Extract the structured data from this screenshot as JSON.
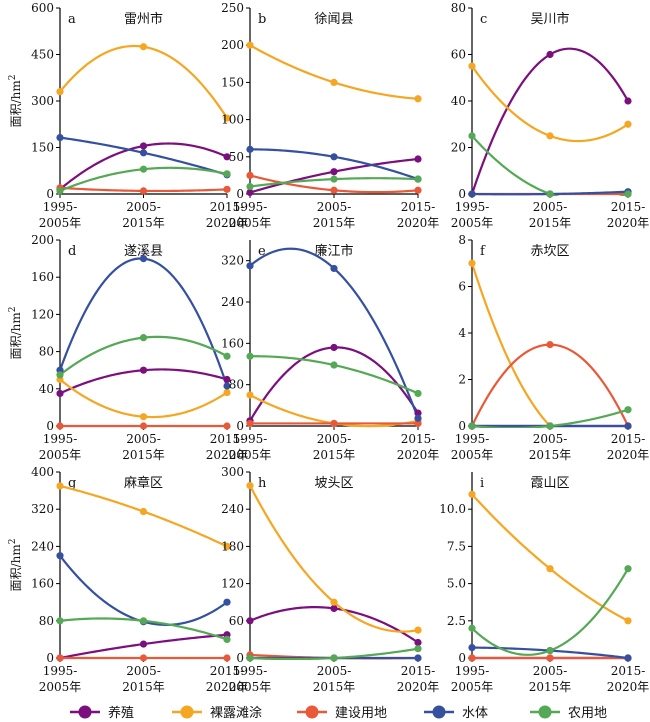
{
  "ylabel_main": "面积/hm",
  "ylabel_sup": "2",
  "legend": [
    {
      "name": "养殖",
      "color": "#7b0f7e"
    },
    {
      "name": "裸露滩涂",
      "color": "#f5a623"
    },
    {
      "name": "建设用地",
      "color": "#e8593a"
    },
    {
      "name": "水体",
      "color": "#3650a0"
    },
    {
      "name": "农用地",
      "color": "#55a855"
    }
  ],
  "chart_data": [
    {
      "type": "line",
      "letter": "a",
      "title": "雷州市",
      "categories": [
        "1995-2005年",
        "2005-2015年",
        "2015-2020年"
      ],
      "ylim": [
        0,
        600
      ],
      "yticks": [
        "0",
        "150",
        "300",
        "450",
        "600"
      ],
      "ytick_values": [
        0,
        150,
        300,
        450,
        600
      ],
      "series": [
        {
          "name": "养殖",
          "values": [
            15,
            155,
            120
          ]
        },
        {
          "name": "裸露滩涂",
          "values": [
            330,
            475,
            245
          ]
        },
        {
          "name": "建设用地",
          "values": [
            20,
            10,
            15
          ]
        },
        {
          "name": "水体",
          "values": [
            182,
            133,
            62
          ]
        },
        {
          "name": "农用地",
          "values": [
            10,
            80,
            65
          ]
        }
      ]
    },
    {
      "type": "line",
      "letter": "b",
      "title": "徐闻县",
      "categories": [
        "1995-2005年",
        "2005-2015年",
        "2015-2020年"
      ],
      "ylim": [
        0,
        250
      ],
      "yticks": [
        "0",
        "50",
        "100",
        "150",
        "200",
        "250"
      ],
      "ytick_values": [
        0,
        50,
        100,
        150,
        200,
        250
      ],
      "series": [
        {
          "name": "养殖",
          "values": [
            2,
            30,
            47
          ]
        },
        {
          "name": "裸露滩涂",
          "values": [
            200,
            150,
            128
          ]
        },
        {
          "name": "建设用地",
          "values": [
            25,
            5,
            5
          ]
        },
        {
          "name": "水体",
          "values": [
            60,
            50,
            20
          ]
        },
        {
          "name": "农用地",
          "values": [
            10,
            20,
            20
          ]
        }
      ]
    },
    {
      "type": "line",
      "letter": "c",
      "title": "吴川市",
      "categories": [
        "1995-2005年",
        "2005-2015年",
        "2015-2020年"
      ],
      "ylim": [
        0,
        80
      ],
      "yticks": [
        "0",
        "20",
        "40",
        "60",
        "80"
      ],
      "ytick_values": [
        0,
        20,
        40,
        60,
        80
      ],
      "series": [
        {
          "name": "养殖",
          "values": [
            0,
            60,
            40
          ]
        },
        {
          "name": "裸露滩涂",
          "values": [
            55,
            25,
            30
          ]
        },
        {
          "name": "建设用地",
          "values": [
            0,
            0,
            0
          ]
        },
        {
          "name": "水体",
          "values": [
            0,
            0,
            1
          ]
        },
        {
          "name": "农用地",
          "values": [
            25,
            0,
            0
          ]
        }
      ]
    },
    {
      "type": "line",
      "letter": "d",
      "title": "遂溪县",
      "categories": [
        "1995-2005年",
        "2005-2015年",
        "2015-2020年"
      ],
      "ylim": [
        0,
        200
      ],
      "yticks": [
        "0",
        "40",
        "80",
        "120",
        "160",
        "200"
      ],
      "ytick_values": [
        0,
        40,
        80,
        120,
        160,
        200
      ],
      "series": [
        {
          "name": "养殖",
          "values": [
            35,
            60,
            50
          ]
        },
        {
          "name": "裸露滩涂",
          "values": [
            50,
            10,
            36
          ]
        },
        {
          "name": "建设用地",
          "values": [
            0,
            0,
            0
          ]
        },
        {
          "name": "水体",
          "values": [
            60,
            180,
            43
          ]
        },
        {
          "name": "农用地",
          "values": [
            55,
            95,
            75
          ]
        }
      ]
    },
    {
      "type": "line",
      "letter": "e",
      "title": "廉江市",
      "categories": [
        "1995-2005年",
        "2005-2015年",
        "2015-2020年"
      ],
      "ylim": [
        0,
        360
      ],
      "yticks": [
        "0",
        "80",
        "160",
        "240",
        "320"
      ],
      "ytick_values": [
        0,
        80,
        160,
        240,
        320
      ],
      "series": [
        {
          "name": "养殖",
          "values": [
            10,
            152,
            25
          ]
        },
        {
          "name": "裸露滩涂",
          "values": [
            60,
            5,
            10
          ]
        },
        {
          "name": "建设用地",
          "values": [
            5,
            5,
            5
          ]
        },
        {
          "name": "水体",
          "values": [
            310,
            305,
            15
          ]
        },
        {
          "name": "农用地",
          "values": [
            135,
            118,
            63
          ]
        }
      ]
    },
    {
      "type": "line",
      "letter": "f",
      "title": "赤坎区",
      "categories": [
        "1995-2005年",
        "2005-2015年",
        "2015-2020年"
      ],
      "ylim": [
        0,
        8
      ],
      "yticks": [
        "0",
        "2",
        "4",
        "6",
        "8"
      ],
      "ytick_values": [
        0,
        2,
        4,
        6,
        8
      ],
      "series": [
        {
          "name": "养殖",
          "values": [
            0,
            0,
            0
          ]
        },
        {
          "name": "裸露滩涂",
          "values": [
            7,
            0,
            0
          ]
        },
        {
          "name": "建设用地",
          "values": [
            0,
            3.5,
            0
          ]
        },
        {
          "name": "水体",
          "values": [
            0,
            0,
            0
          ]
        },
        {
          "name": "农用地",
          "values": [
            0,
            0,
            0.7
          ]
        }
      ]
    },
    {
      "type": "line",
      "letter": "g",
      "title": "麻章区",
      "categories": [
        "1995-2005年",
        "2005-2015年",
        "2015-2020年"
      ],
      "ylim": [
        0,
        400
      ],
      "yticks": [
        "0",
        "80",
        "160",
        "240",
        "320",
        "400"
      ],
      "ytick_values": [
        0,
        80,
        160,
        240,
        320,
        400
      ],
      "series": [
        {
          "name": "养殖",
          "values": [
            0,
            30,
            50
          ]
        },
        {
          "name": "裸露滩涂",
          "values": [
            370,
            315,
            240
          ]
        },
        {
          "name": "建设用地",
          "values": [
            0,
            0,
            0
          ]
        },
        {
          "name": "水体",
          "values": [
            220,
            78,
            120
          ]
        },
        {
          "name": "农用地",
          "values": [
            80,
            80,
            40
          ]
        }
      ]
    },
    {
      "type": "line",
      "letter": "h",
      "title": "坡头区",
      "categories": [
        "1995-2005年",
        "2005-2015年",
        "2015-2020年"
      ],
      "ylim": [
        0,
        300
      ],
      "yticks": [
        "0",
        "60",
        "120",
        "180",
        "240",
        "300"
      ],
      "ytick_values": [
        0,
        60,
        120,
        180,
        240,
        300
      ],
      "series": [
        {
          "name": "养殖",
          "values": [
            60,
            80,
            25
          ]
        },
        {
          "name": "裸露滩涂",
          "values": [
            278,
            90,
            45
          ]
        },
        {
          "name": "建设用地",
          "values": [
            5,
            0,
            0
          ]
        },
        {
          "name": "水体",
          "values": [
            0,
            0,
            0
          ]
        },
        {
          "name": "农用地",
          "values": [
            0,
            0,
            15
          ]
        }
      ]
    },
    {
      "type": "line",
      "letter": "i",
      "title": "霞山区",
      "categories": [
        "1995-2005年",
        "2005-2015年",
        "2015-2020年"
      ],
      "ylim": [
        0,
        12.5
      ],
      "yticks": [
        "0",
        "2.5",
        "5.0",
        "7.5",
        "10.0"
      ],
      "ytick_values": [
        0,
        2.5,
        5.0,
        7.5,
        10.0
      ],
      "series": [
        {
          "name": "养殖",
          "values": [
            0,
            0,
            0
          ]
        },
        {
          "name": "裸露滩涂",
          "values": [
            11,
            6,
            2.5
          ]
        },
        {
          "name": "建设用地",
          "values": [
            0,
            0,
            0
          ]
        },
        {
          "name": "水体",
          "values": [
            0.7,
            0.5,
            0
          ]
        },
        {
          "name": "农用地",
          "values": [
            2,
            0.5,
            6
          ]
        }
      ]
    }
  ]
}
